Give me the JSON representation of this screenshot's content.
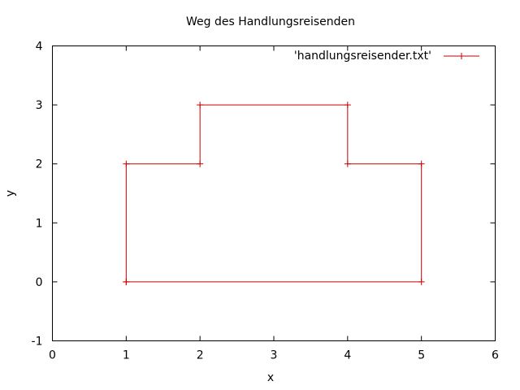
{
  "chart_data": {
    "type": "line",
    "title": "Weg des Handlungsreisenden",
    "xlabel": "x",
    "ylabel": "y",
    "xlim": [
      0,
      6
    ],
    "ylim": [
      -1,
      4
    ],
    "x_ticks": [
      0,
      1,
      2,
      3,
      4,
      5,
      6
    ],
    "y_ticks": [
      -1,
      0,
      1,
      2,
      3,
      4
    ],
    "grid": false,
    "legend_position": "top-right",
    "series": [
      {
        "name": "'handlungsreisender.txt'",
        "color": "#cc0000",
        "marker": "plus",
        "points": [
          {
            "x": 1,
            "y": 0
          },
          {
            "x": 1,
            "y": 2
          },
          {
            "x": 2,
            "y": 2
          },
          {
            "x": 2,
            "y": 3
          },
          {
            "x": 4,
            "y": 3
          },
          {
            "x": 4,
            "y": 2
          },
          {
            "x": 5,
            "y": 2
          },
          {
            "x": 5,
            "y": 0
          },
          {
            "x": 1,
            "y": 0
          }
        ]
      }
    ]
  }
}
